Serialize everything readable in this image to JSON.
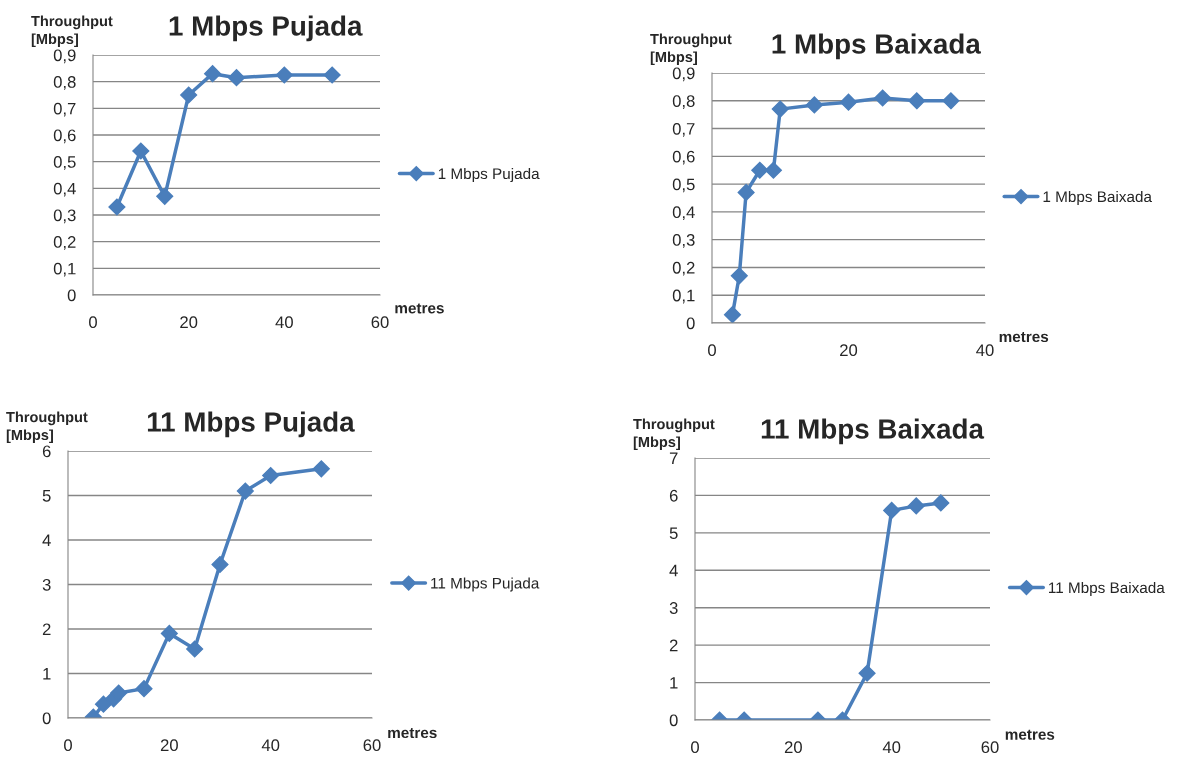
{
  "chart_data": [
    {
      "type": "line",
      "title": "1 Mbps Pujada",
      "xlabel": "metres",
      "ylabel": "Throughput\n[Mbps]",
      "marker": "diamond",
      "grid": "y",
      "legend": "right",
      "xlim": [
        0,
        60
      ],
      "xticks": [
        0,
        20,
        40,
        60
      ],
      "ylim": [
        0,
        0.9
      ],
      "yticks": [
        0,
        {
          "value": 0.1,
          "label": "0,1"
        },
        {
          "value": 0.2,
          "label": "0,2"
        },
        {
          "value": 0.3,
          "label": "0,3"
        },
        {
          "value": 0.4,
          "label": "0,4"
        },
        {
          "value": 0.5,
          "label": "0,5"
        },
        {
          "value": 0.6,
          "label": "0,6"
        },
        {
          "value": 0.7,
          "label": "0,7"
        },
        {
          "value": 0.8,
          "label": "0,8"
        },
        {
          "value": 0.9,
          "label": "0,9"
        }
      ],
      "x": [
        5,
        10,
        15,
        20,
        25,
        30,
        40,
        50
      ],
      "series": [
        {
          "name": "1 Mbps Pujada",
          "color": "#4a7ebb",
          "values": [
            0.33,
            0.54,
            0.37,
            0.75,
            0.83,
            0.815,
            0.825,
            0.825
          ]
        }
      ]
    },
    {
      "type": "line",
      "title": "1 Mbps Baixada",
      "xlabel": "metres",
      "ylabel": "Throughput\n[Mbps]",
      "marker": "diamond",
      "grid": "y",
      "legend": "right",
      "xlim": [
        0,
        40
      ],
      "xticks": [
        0,
        20,
        40
      ],
      "ylim": [
        0,
        0.9
      ],
      "yticks": [
        0,
        {
          "value": 0.1,
          "label": "0,1"
        },
        {
          "value": 0.2,
          "label": "0,2"
        },
        {
          "value": 0.3,
          "label": "0,3"
        },
        {
          "value": 0.4,
          "label": "0,4"
        },
        {
          "value": 0.5,
          "label": "0,5"
        },
        {
          "value": 0.6,
          "label": "0,6"
        },
        {
          "value": 0.7,
          "label": "0,7"
        },
        {
          "value": 0.8,
          "label": "0,8"
        },
        {
          "value": 0.9,
          "label": "0,9"
        }
      ],
      "x": [
        3,
        4,
        5,
        7,
        9,
        10,
        15,
        20,
        25,
        30,
        35
      ],
      "series": [
        {
          "name": "1 Mbps Baixada",
          "color": "#4a7ebb",
          "values": [
            0.03,
            0.17,
            0.47,
            0.55,
            0.55,
            0.77,
            0.785,
            0.795,
            0.81,
            0.8,
            0.8
          ]
        }
      ]
    },
    {
      "type": "line",
      "title": "11 Mbps Pujada",
      "xlabel": "metres",
      "ylabel": "Throughput\n[Mbps]",
      "marker": "diamond",
      "grid": "y",
      "legend": "right",
      "xlim": [
        0,
        60
      ],
      "xticks": [
        0,
        20,
        40,
        60
      ],
      "ylim": [
        0,
        6
      ],
      "yticks": [
        0,
        1,
        2,
        3,
        4,
        5,
        6
      ],
      "x": [
        5,
        7,
        9,
        10,
        15,
        20,
        25,
        30,
        35,
        40,
        50
      ],
      "series": [
        {
          "name": "11 Mbps Pujada",
          "color": "#4a7ebb",
          "values": [
            0.02,
            0.31,
            0.43,
            0.56,
            0.66,
            1.9,
            1.55,
            3.45,
            5.1,
            5.45,
            5.6
          ]
        }
      ]
    },
    {
      "type": "line",
      "title": "11 Mbps Baixada",
      "xlabel": "metres",
      "ylabel": "Throughput\n[Mbps]",
      "marker": "diamond",
      "grid": "y",
      "legend": "right",
      "xlim": [
        0,
        60
      ],
      "xticks": [
        0,
        20,
        40,
        60
      ],
      "ylim": [
        0,
        7
      ],
      "yticks": [
        0,
        1,
        2,
        3,
        4,
        5,
        6,
        7
      ],
      "x": [
        5,
        10,
        25,
        30,
        35,
        40,
        45,
        50
      ],
      "series": [
        {
          "name": "11 Mbps Baixada",
          "color": "#4a7ebb",
          "values": [
            0,
            0,
            0,
            0,
            1.25,
            5.6,
            5.72,
            5.8
          ]
        }
      ]
    }
  ]
}
